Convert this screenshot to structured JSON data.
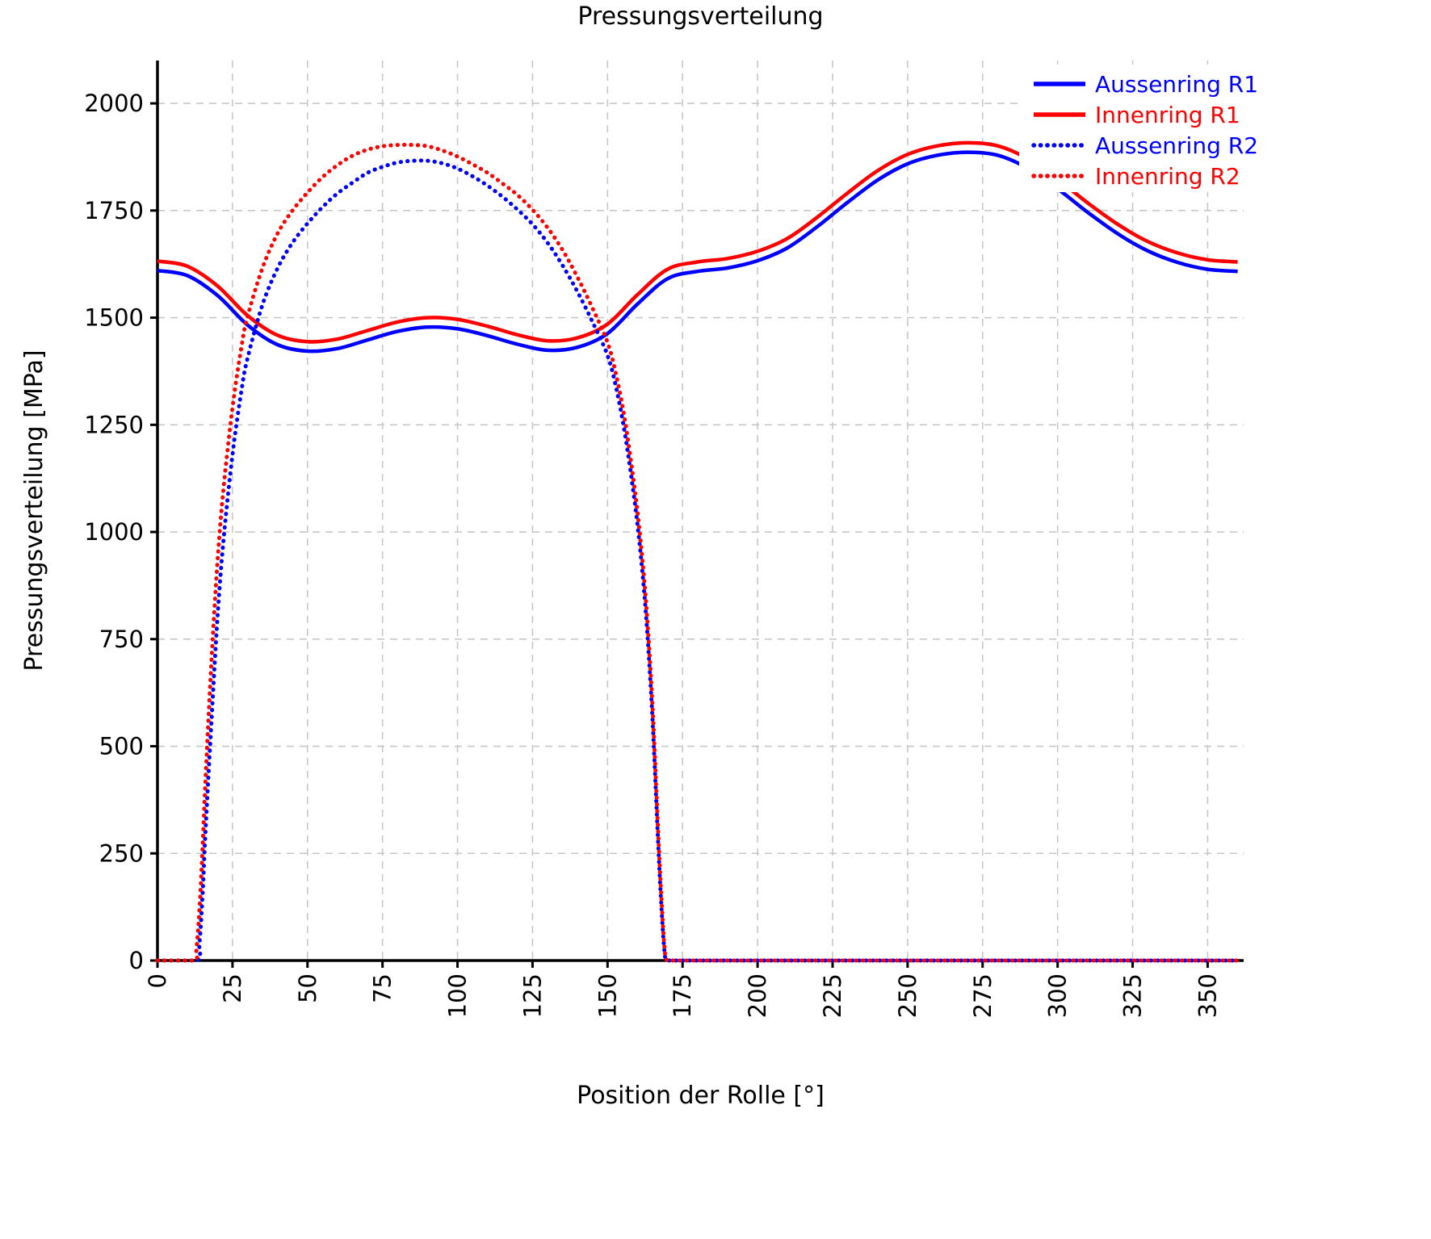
{
  "chart_data": {
    "type": "line",
    "title": "Pressungsverteilung",
    "xlabel": "Position der Rolle [°]",
    "ylabel": "Pressungsverteilung [MPa]",
    "xlim": [
      0,
      362
    ],
    "ylim": [
      0,
      2100
    ],
    "xticks": [
      0,
      25,
      50,
      75,
      100,
      125,
      150,
      175,
      200,
      225,
      250,
      275,
      300,
      325,
      350
    ],
    "yticks": [
      0,
      250,
      500,
      750,
      1000,
      1250,
      1500,
      1750,
      2000
    ],
    "grid": true,
    "grid_color": "#c8c8c8",
    "axis_color": "#000000",
    "background_color": "#ffffff",
    "legend_position": "top-right",
    "series": [
      {
        "name": "Aussenring R1",
        "color": "#0000ff",
        "style": "solid",
        "x": [
          0,
          10,
          20,
          30,
          40,
          50,
          60,
          70,
          80,
          90,
          100,
          110,
          120,
          130,
          140,
          150,
          160,
          170,
          180,
          190,
          200,
          210,
          220,
          230,
          240,
          250,
          260,
          270,
          280,
          290,
          300,
          310,
          320,
          330,
          340,
          350,
          360
        ],
        "y": [
          1610,
          1598,
          1552,
          1483,
          1437,
          1422,
          1428,
          1448,
          1468,
          1478,
          1474,
          1458,
          1438,
          1424,
          1431,
          1463,
          1532,
          1591,
          1608,
          1616,
          1633,
          1663,
          1713,
          1769,
          1821,
          1859,
          1879,
          1886,
          1879,
          1849,
          1801,
          1746,
          1696,
          1656,
          1629,
          1613,
          1608
        ]
      },
      {
        "name": "Innenring R1",
        "color": "#ff0000",
        "style": "solid",
        "x": [
          0,
          10,
          20,
          30,
          40,
          50,
          60,
          70,
          80,
          90,
          100,
          110,
          120,
          130,
          140,
          150,
          160,
          170,
          180,
          190,
          200,
          210,
          220,
          230,
          240,
          250,
          260,
          270,
          280,
          290,
          300,
          310,
          320,
          330,
          340,
          350,
          360
        ],
        "y": [
          1632,
          1620,
          1574,
          1505,
          1459,
          1444,
          1450,
          1470,
          1490,
          1500,
          1496,
          1480,
          1460,
          1446,
          1453,
          1485,
          1554,
          1613,
          1630,
          1638,
          1655,
          1685,
          1735,
          1791,
          1843,
          1881,
          1901,
          1908,
          1901,
          1871,
          1823,
          1768,
          1718,
          1678,
          1651,
          1635,
          1630
        ]
      },
      {
        "name": "Aussenring R2",
        "color": "#0000ff",
        "style": "dotted",
        "x": [
          0,
          13,
          14,
          15,
          16,
          18,
          20,
          22,
          25,
          28,
          30,
          35,
          40,
          45,
          50,
          55,
          60,
          65,
          70,
          75,
          80,
          85,
          90,
          95,
          100,
          105,
          110,
          115,
          120,
          125,
          130,
          135,
          140,
          145,
          150,
          153,
          156,
          159,
          161,
          163,
          165,
          167,
          168,
          169,
          170,
          175,
          200,
          250,
          300,
          350,
          360
        ],
        "y": [
          0,
          0,
          40,
          150,
          300,
          560,
          800,
          980,
          1180,
          1330,
          1405,
          1530,
          1615,
          1675,
          1720,
          1758,
          1790,
          1815,
          1838,
          1852,
          1862,
          1866,
          1866,
          1860,
          1848,
          1830,
          1808,
          1782,
          1752,
          1718,
          1675,
          1622,
          1560,
          1490,
          1412,
          1332,
          1220,
          1072,
          950,
          790,
          560,
          255,
          120,
          20,
          0,
          0,
          0,
          0,
          0,
          0,
          0
        ]
      },
      {
        "name": "Innenring R2",
        "color": "#ff0000",
        "style": "dotted",
        "x": [
          0,
          12,
          13,
          14,
          15,
          16,
          18,
          20,
          22,
          25,
          28,
          30,
          35,
          40,
          45,
          50,
          55,
          60,
          65,
          70,
          75,
          80,
          85,
          90,
          95,
          100,
          105,
          110,
          115,
          120,
          125,
          130,
          135,
          140,
          145,
          150,
          153,
          156,
          159,
          161,
          163,
          165,
          167,
          168,
          169,
          170,
          175,
          200,
          250,
          300,
          350,
          360
        ],
        "y": [
          0,
          0,
          30,
          120,
          260,
          420,
          700,
          930,
          1100,
          1290,
          1432,
          1502,
          1616,
          1696,
          1750,
          1792,
          1828,
          1856,
          1878,
          1892,
          1900,
          1903,
          1903,
          1900,
          1890,
          1876,
          1858,
          1838,
          1813,
          1786,
          1752,
          1710,
          1658,
          1594,
          1522,
          1442,
          1362,
          1252,
          1102,
          980,
          820,
          590,
          280,
          140,
          30,
          0,
          0,
          0,
          0,
          0,
          0,
          0
        ]
      }
    ]
  }
}
